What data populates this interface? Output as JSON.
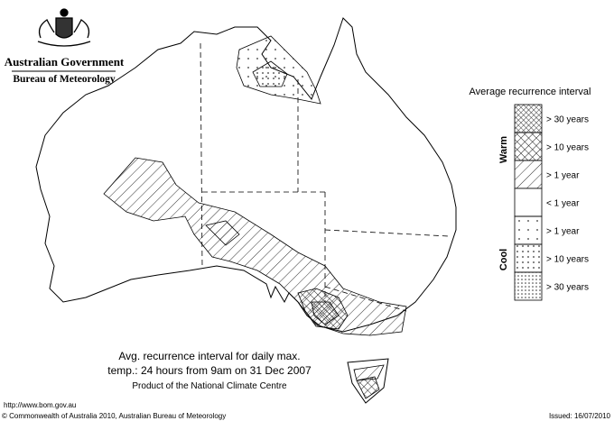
{
  "header": {
    "title": "Australian Government",
    "subtitle": "Bureau of Meteorology"
  },
  "legend": {
    "title": "Average recurrence interval",
    "warm_label": "Warm",
    "cool_label": "Cool",
    "entries": [
      "> 30 years",
      "> 10 years",
      "> 1 year",
      "< 1 year",
      "> 1 year",
      "> 10 years",
      "> 30 years"
    ]
  },
  "caption": {
    "line1": "Avg. recurrence interval for daily max.",
    "line2": "temp.: 24 hours from 9am on 31 Dec 2007",
    "line3": "Product of the National Climate Centre"
  },
  "footer": {
    "url": "http://www.bom.gov.au",
    "copyright": "© Commonwealth of Australia 2010, Australian Bureau of Meteorology",
    "issued": "Issued: 16/07/2010"
  }
}
